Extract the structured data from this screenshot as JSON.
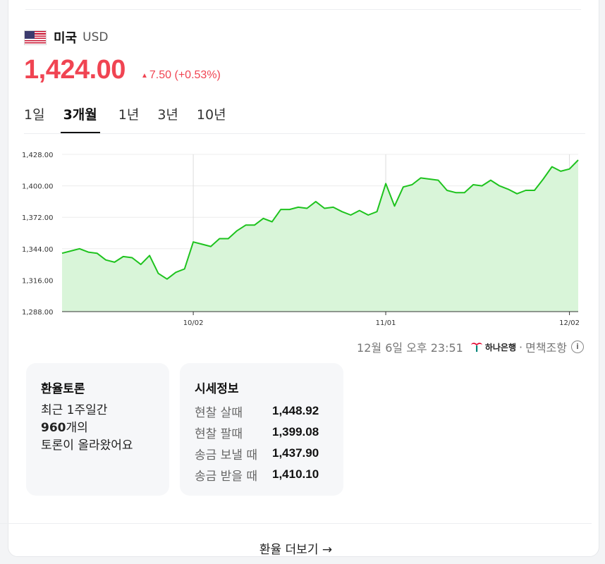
{
  "country": {
    "name": "미국",
    "code": "USD",
    "flag_icon": "us-flag-icon"
  },
  "price": {
    "value": "1,424.00",
    "change": "7.50",
    "change_percent": "(+0.53%)",
    "direction_icon": "up-triangle-icon",
    "color": "#f04452"
  },
  "tabs": [
    {
      "label": "1일",
      "active": false
    },
    {
      "label": "3개월",
      "active": true
    },
    {
      "label": "1년",
      "active": false
    },
    {
      "label": "3년",
      "active": false
    },
    {
      "label": "10년",
      "active": false
    }
  ],
  "chart_data": {
    "type": "area",
    "ylim": [
      1288,
      1428
    ],
    "y_ticks": [
      "1,428.00",
      "1,400.00",
      "1,372.00",
      "1,344.00",
      "1,316.00",
      "1,288.00"
    ],
    "y_tick_values": [
      1428,
      1400,
      1372,
      1344,
      1316,
      1288
    ],
    "x_tick_labels": [
      "10/02",
      "11/01",
      "12/02"
    ],
    "x_tick_index": [
      15,
      37,
      58
    ],
    "values": [
      1340,
      1342,
      1344,
      1341,
      1340,
      1334,
      1332,
      1337,
      1336,
      1330,
      1338,
      1322,
      1317,
      1323,
      1326,
      1350,
      1348,
      1346,
      1353,
      1353,
      1360,
      1365,
      1365,
      1371,
      1368,
      1379,
      1379,
      1381,
      1380,
      1386,
      1380,
      1381,
      1377,
      1374,
      1378,
      1374,
      1377,
      1402,
      1382,
      1399,
      1401,
      1407,
      1406,
      1405,
      1396,
      1394,
      1394,
      1401,
      1400,
      1405,
      1400,
      1397,
      1393,
      1396,
      1396,
      1406,
      1417,
      1413,
      1415,
      1423
    ],
    "line_color": "#1ec31e",
    "fill_color": "#d9f5d9",
    "grid": true
  },
  "source": {
    "timestamp": "12월 6일 오후 23:51",
    "bank": "하나은행",
    "bank_icon": "hana-bank-logo-icon",
    "separator": "·",
    "disclaimer": "면책조항",
    "info_icon_glyph": "i"
  },
  "forum": {
    "title": "환율토론",
    "line1": "최근 1주일간",
    "count": "960",
    "line2_suffix": "개의",
    "line3": "토론이 올라왔어요"
  },
  "market_info": {
    "title": "시세정보",
    "rows": [
      {
        "label": "현찰 살때",
        "value": "1,448.92"
      },
      {
        "label": "현찰 팔때",
        "value": "1,399.08"
      },
      {
        "label": "송금 보낼 때",
        "value": "1,437.90"
      },
      {
        "label": "송금 받을 때",
        "value": "1,410.10"
      }
    ]
  },
  "more_link": {
    "label": "환율 더보기 →",
    "icon": "arrow-right-icon"
  }
}
